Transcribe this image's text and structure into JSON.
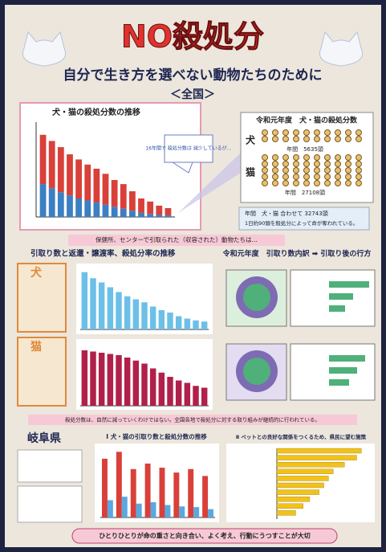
{
  "header": {
    "title": "NO殺処分",
    "subtitle": "自分で生き方を選べない動物たちのために",
    "region": "＜全国＞"
  },
  "national": {
    "title": "犬・猫の殺処分数の推移",
    "note": "16年間で 殺処分数は 減少しているが…",
    "ylim": [
      0,
      450
    ],
    "series": [
      {
        "color": "#3b7fc4",
        "values": [
          160,
          140,
          120,
          105,
          90,
          80,
          70,
          60,
          50,
          40,
          30,
          20,
          15,
          10,
          8
        ]
      },
      {
        "color": "#d9403a",
        "values": [
          240,
          230,
          220,
          200,
          190,
          175,
          165,
          150,
          130,
          120,
          95,
          70,
          60,
          45,
          35
        ]
      }
    ]
  },
  "reiwa": {
    "title": "令和元年度　犬・猫の殺処分数",
    "dog": "犬",
    "cat": "猫",
    "dog_total": "年間　5635頭",
    "cat_total": "年間　27108頭",
    "summary1": "年間　犬・猫 合わせて 32743頭",
    "summary2": "1日約90頭を殺処分によって命が奪われている。"
  },
  "strip1": "保健所、センターで引取られた（収容された）動物たちは…",
  "trend": {
    "title": "引取り数と返還・譲渡率、殺処分率の推移",
    "dog_label": "犬",
    "cat_label": "猫",
    "ylim": [
      0,
      100
    ],
    "dog": {
      "color": "#6cc0e8",
      "values": [
        95,
        85,
        78,
        70,
        62,
        55,
        50,
        45,
        38,
        32,
        28,
        22,
        18,
        15,
        13
      ]
    },
    "cat": {
      "color": "#b0204a",
      "values": [
        92,
        90,
        88,
        86,
        84,
        80,
        75,
        70,
        62,
        55,
        48,
        42,
        38,
        33,
        30
      ]
    }
  },
  "breakdown": {
    "title": "令和元年度　引取り数内訳 ➡ 引取り後の行方"
  },
  "strip2": "殺処分数は、自然に減っていくわけではない。全国各地で殺処分に対する取り組みが継続的に行われている。",
  "gifu": {
    "title": "岐阜県",
    "chart_title": "Ⅰ 犬・猫の引取り数と殺処分数の推移",
    "ylim": [
      0,
      1000
    ],
    "series": [
      {
        "color": "#d9403a",
        "values": [
          850,
          950,
          700,
          780,
          720,
          650,
          700,
          600
        ]
      },
      {
        "color": "#5aa8e0",
        "values": [
          250,
          300,
          200,
          220,
          180,
          160,
          150,
          120
        ]
      }
    ],
    "policy_title": "Ⅱ ペットとの良好な関係をつくるため、県民に望む施策",
    "xlim": [
      0,
      100
    ],
    "policy_color": "#f2c21b",
    "policy_values": [
      90,
      85,
      72,
      60,
      55,
      50,
      45,
      35,
      28,
      20
    ]
  },
  "footer": "ひとりひとりが命の重さと向き合い、よく考え、行動にうつすことが大切"
}
